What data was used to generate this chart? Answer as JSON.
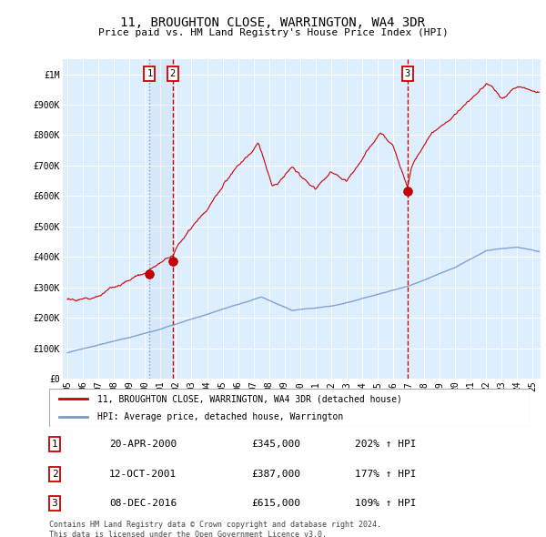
{
  "title": "11, BROUGHTON CLOSE, WARRINGTON, WA4 3DR",
  "subtitle": "Price paid vs. HM Land Registry's House Price Index (HPI)",
  "ylim": [
    0,
    1050000
  ],
  "yticks": [
    0,
    100000,
    200000,
    300000,
    400000,
    500000,
    600000,
    700000,
    800000,
    900000,
    1000000
  ],
  "ytick_labels": [
    "£0",
    "£100K",
    "£200K",
    "£300K",
    "£400K",
    "£500K",
    "£600K",
    "£700K",
    "£800K",
    "£900K",
    "£1M"
  ],
  "xlim_start": 1994.7,
  "xlim_end": 2025.5,
  "xticks": [
    1995,
    1996,
    1997,
    1998,
    1999,
    2000,
    2001,
    2002,
    2003,
    2004,
    2005,
    2006,
    2007,
    2008,
    2009,
    2010,
    2011,
    2012,
    2013,
    2014,
    2015,
    2016,
    2017,
    2018,
    2019,
    2020,
    2021,
    2022,
    2023,
    2024,
    2025
  ],
  "background_color": "#ddeeff",
  "grid_color": "#ffffff",
  "red_line_color": "#cc0000",
  "blue_line_color": "#7799cc",
  "transaction_dates": [
    2000.3,
    2001.78,
    2016.93
  ],
  "transaction_values": [
    345000,
    387000,
    615000
  ],
  "transaction_labels": [
    "1",
    "2",
    "3"
  ],
  "vline1_color": "#aabbdd",
  "vline2_color": "#cc0000",
  "label_box_color": "#ffffff",
  "label_box_edge": "#cc0000",
  "legend_label_red": "11, BROUGHTON CLOSE, WARRINGTON, WA4 3DR (detached house)",
  "legend_label_blue": "HPI: Average price, detached house, Warrington",
  "table_data": [
    [
      "1",
      "20-APR-2000",
      "£345,000",
      "202% ↑ HPI"
    ],
    [
      "2",
      "12-OCT-2001",
      "£387,000",
      "177% ↑ HPI"
    ],
    [
      "3",
      "08-DEC-2016",
      "£615,000",
      "109% ↑ HPI"
    ]
  ],
  "footnote": "Contains HM Land Registry data © Crown copyright and database right 2024.\nThis data is licensed under the Open Government Licence v3.0.",
  "font_family": "monospace"
}
